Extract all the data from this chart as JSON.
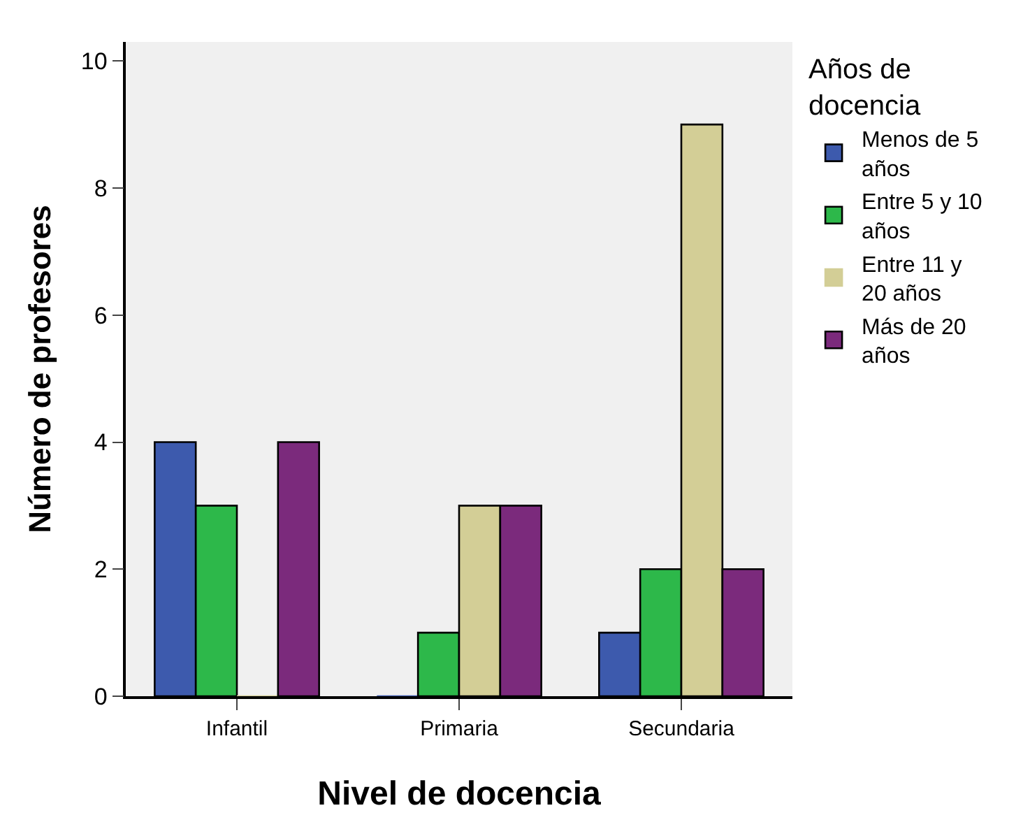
{
  "chart_data": {
    "type": "bar",
    "xlabel": "Nivel de docencia",
    "ylabel": "Número de profesores",
    "legend_title": "Años de docencia",
    "categories": [
      "Infantil",
      "Primaria",
      "Secundaria"
    ],
    "series": [
      {
        "name": "Menos de 5 años",
        "color": "#3d5aad",
        "values": [
          4,
          0,
          1
        ]
      },
      {
        "name": "Entre 5 y 10 años",
        "color": "#2db84a",
        "values": [
          3,
          1,
          2
        ]
      },
      {
        "name": "Entre 11 y 20 años",
        "color": "#d3ce96",
        "values": [
          0,
          3,
          9
        ]
      },
      {
        "name": "Más de 20 años",
        "color": "#7b2a7c",
        "values": [
          4,
          3,
          2
        ]
      }
    ],
    "ylim": [
      0,
      10.3
    ],
    "yticks": [
      0,
      2,
      4,
      6,
      8,
      10
    ],
    "grid": false,
    "legend": "right"
  }
}
